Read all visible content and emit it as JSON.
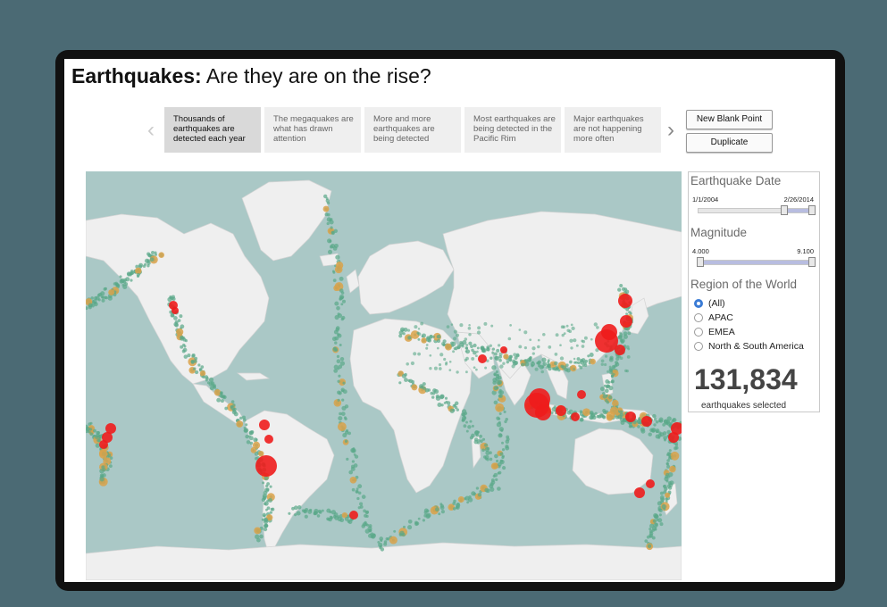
{
  "title": {
    "bold": "Earthquakes:",
    "rest": " Are they are on the rise?"
  },
  "story": {
    "prev_icon": "chevron-left-icon",
    "next_icon": "chevron-right-icon",
    "points": [
      "Thousands of earthquakes are detected each year",
      "The megaquakes are what has drawn attention",
      "More and more earthquakes are being detected",
      "Most earthquakes are being detected in the Pacific Rim",
      "Major earthquakes are not happening more often"
    ],
    "active_index": 0,
    "new_blank_label": "New Blank Point",
    "duplicate_label": "Duplicate"
  },
  "filters": {
    "date": {
      "title": "Earthquake Date",
      "min": "1/1/2004",
      "max": "2/26/2014",
      "selected_start_fraction": 0.74,
      "selected_end_fraction": 1.0
    },
    "magnitude": {
      "title": "Magnitude",
      "min": "4.000",
      "max": "9.100",
      "selected_start_fraction": 0.0,
      "selected_end_fraction": 1.0
    },
    "region": {
      "title": "Region of the World",
      "options": [
        "(All)",
        "APAC",
        "EMEA",
        "North & South America"
      ],
      "selected": "(All)"
    }
  },
  "summary": {
    "count": "131,834",
    "caption": "earthquakes selected"
  },
  "colors": {
    "ocean": "#aac8c6",
    "land": "#efefef",
    "small_quake": "#5aa889",
    "medium_quake": "#d9a24a",
    "large_quake": "#ee1c1c",
    "radio_selected": "#3a7bd5"
  }
}
